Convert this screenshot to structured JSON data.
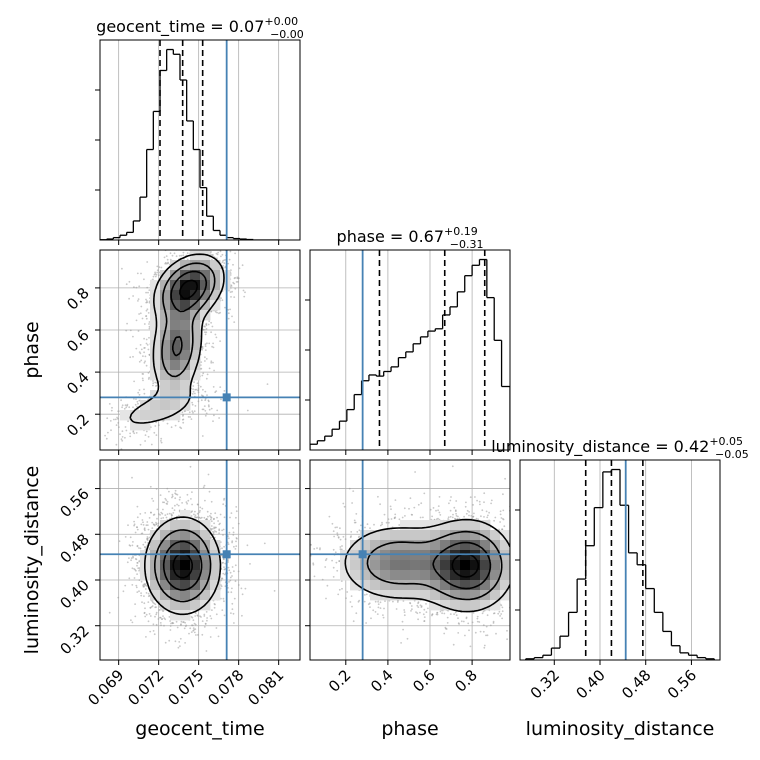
{
  "colors": {
    "truth": "#4682b4",
    "line": "#000000",
    "grid": "#b0b0b0",
    "points": "#9a9a9a"
  },
  "chart_data": {
    "type": "corner",
    "parameters": [
      "geocent_time",
      "phase",
      "luminosity_distance"
    ],
    "truths": {
      "geocent_time": 0.0771,
      "phase": 0.28,
      "luminosity_distance": 0.445
    },
    "titles": [
      {
        "param": "geocent_time",
        "main": "geocent_time = 0.07",
        "sup": "+0.00",
        "sub": "−0.00"
      },
      {
        "param": "phase",
        "main": "phase = 0.67",
        "sup": "+0.19",
        "sub": "−0.31"
      },
      {
        "param": "luminosity_distance",
        "main": "luminosity_distance = 0.42",
        "sup": "+0.05",
        "sub": "−0.05"
      }
    ],
    "axes": {
      "geocent_time": {
        "range": [
          0.0676,
          0.0826
        ],
        "ticks": [
          0.069,
          0.072,
          0.075,
          0.078,
          0.081
        ],
        "tick_labels": [
          "0.069",
          "0.072",
          "0.075",
          "0.078",
          "0.081"
        ],
        "label": "geocent_time"
      },
      "phase": {
        "range": [
          0.03,
          0.98
        ],
        "ticks": [
          0.2,
          0.4,
          0.6,
          0.8
        ],
        "tick_labels": [
          "0.2",
          "0.4",
          "0.6",
          "0.8"
        ],
        "label": "phase"
      },
      "luminosity_distance": {
        "range": [
          0.26,
          0.61
        ],
        "ticks": [
          0.32,
          0.4,
          0.48,
          0.56
        ],
        "tick_labels": [
          "0.32",
          "0.40",
          "0.48",
          "0.56"
        ],
        "label": "luminosity_distance"
      }
    },
    "histograms": {
      "geocent_time": {
        "edges": [
          0.0676,
          0.0681,
          0.0686,
          0.0691,
          0.0696,
          0.0701,
          0.0706,
          0.0711,
          0.0716,
          0.0721,
          0.0726,
          0.0731,
          0.0736,
          0.0741,
          0.0746,
          0.0751,
          0.0756,
          0.0761,
          0.0766,
          0.0771,
          0.0776,
          0.0781,
          0.0786,
          0.0791,
          0.0796,
          0.0801,
          0.0806,
          0.0811
        ],
        "counts": [
          0.3,
          1,
          2.5,
          5,
          8,
          20,
          45,
          95,
          135,
          178,
          200,
          195,
          168,
          125,
          95,
          55,
          25,
          10,
          5,
          2.5,
          1.5,
          1,
          0.5,
          0,
          0,
          0,
          0
        ],
        "quantiles": [
          0.0721,
          0.0738,
          0.0753
        ]
      },
      "phase": {
        "edges": [
          0.03,
          0.065,
          0.1,
          0.135,
          0.17,
          0.205,
          0.24,
          0.275,
          0.31,
          0.345,
          0.38,
          0.415,
          0.45,
          0.485,
          0.52,
          0.555,
          0.59,
          0.625,
          0.66,
          0.695,
          0.73,
          0.765,
          0.8,
          0.835,
          0.87,
          0.905,
          0.94,
          0.98
        ],
        "counts": [
          5,
          8,
          12,
          18,
          25,
          35,
          48,
          60,
          65,
          64,
          68,
          72,
          80,
          85,
          92,
          98,
          103,
          105,
          117,
          124,
          137,
          151,
          160,
          165,
          132,
          95,
          55
        ],
        "quantiles": [
          0.36,
          0.67,
          0.86
        ]
      },
      "luminosity_distance": {
        "edges": [
          0.27,
          0.285,
          0.3,
          0.315,
          0.33,
          0.345,
          0.36,
          0.375,
          0.39,
          0.405,
          0.42,
          0.435,
          0.45,
          0.465,
          0.48,
          0.495,
          0.51,
          0.525,
          0.54,
          0.555,
          0.57,
          0.585,
          0.6
        ],
        "counts": [
          0.5,
          1,
          2,
          5,
          10,
          20,
          34,
          48,
          64,
          79,
          80,
          65,
          45,
          40,
          30,
          20,
          12,
          6,
          3,
          2,
          1,
          0.5
        ],
        "quantiles": [
          0.375,
          0.42,
          0.475
        ]
      }
    },
    "densities": [
      {
        "x": "geocent_time",
        "y": "phase",
        "components": [
          {
            "mx": 0.0743,
            "my": 0.8,
            "sx": 0.0013,
            "sy": 0.08,
            "rho": 0.3,
            "w": 0.6
          },
          {
            "mx": 0.0734,
            "my": 0.52,
            "sx": 0.001,
            "sy": 0.12,
            "rho": 0.2,
            "w": 0.4
          },
          {
            "mx": 0.0718,
            "my": 0.22,
            "sx": 0.0022,
            "sy": 0.07,
            "rho": 0.6,
            "w": 0.12
          }
        ]
      },
      {
        "x": "geocent_time",
        "y": "luminosity_distance",
        "components": [
          {
            "mx": 0.0738,
            "my": 0.425,
            "sx": 0.0014,
            "sy": 0.042,
            "rho": 0.0,
            "w": 1.0
          }
        ]
      },
      {
        "x": "phase",
        "y": "luminosity_distance",
        "components": [
          {
            "mx": 0.78,
            "my": 0.425,
            "sx": 0.11,
            "sy": 0.04,
            "rho": 0.0,
            "w": 0.8
          },
          {
            "mx": 0.45,
            "my": 0.43,
            "sx": 0.15,
            "sy": 0.036,
            "rho": 0.0,
            "w": 0.45
          }
        ]
      }
    ]
  }
}
